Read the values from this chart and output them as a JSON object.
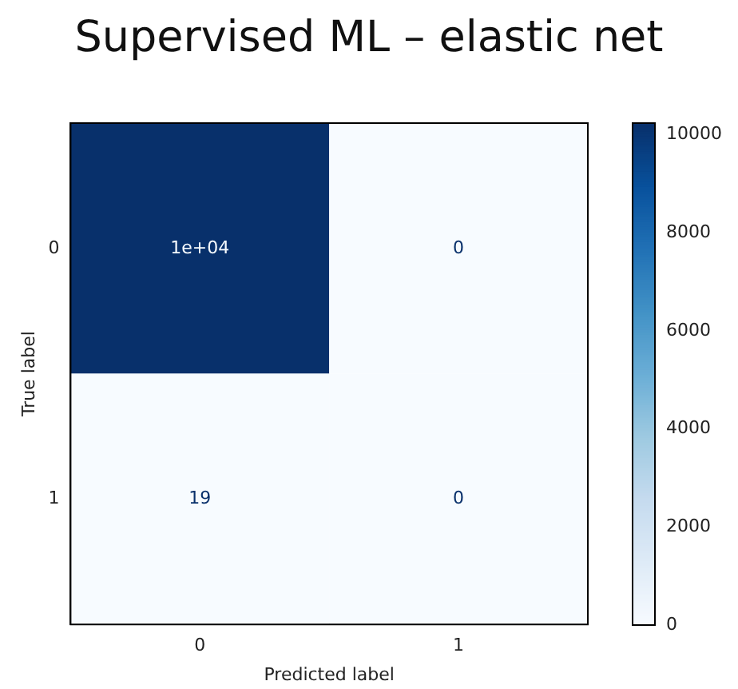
{
  "chart_data": {
    "type": "heatmap",
    "title": "Supervised ML – elastic net",
    "xlabel": "Predicted label",
    "ylabel": "True label",
    "categories": [
      "0",
      "1"
    ],
    "y_categories": [
      "0",
      "1"
    ],
    "cells": [
      [
        10240,
        0
      ],
      [
        19,
        0
      ]
    ],
    "cell_labels": [
      [
        "1e+04",
        "0"
      ],
      [
        "19",
        "0"
      ]
    ],
    "clim": [
      0,
      10240
    ],
    "cticks": [
      0,
      2000,
      4000,
      6000,
      8000,
      10000
    ]
  }
}
